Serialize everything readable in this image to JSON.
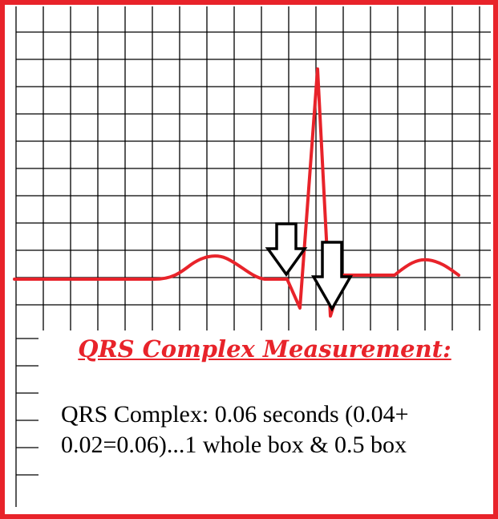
{
  "title": "QRS Complex Measurement:",
  "body": {
    "line1": "QRS Complex: 0.06 seconds (0.04+",
    "line2": "0.02=0.06)...1 whole box & 0.5 box"
  },
  "colors": {
    "border": "#e8232a",
    "trace": "#e8232a",
    "grid": "#000000",
    "title": "#e8232a",
    "arrow_fill": "#ffffff",
    "arrow_stroke": "#000000"
  },
  "icons": [
    "down-arrow-icon",
    "down-arrow-icon"
  ]
}
